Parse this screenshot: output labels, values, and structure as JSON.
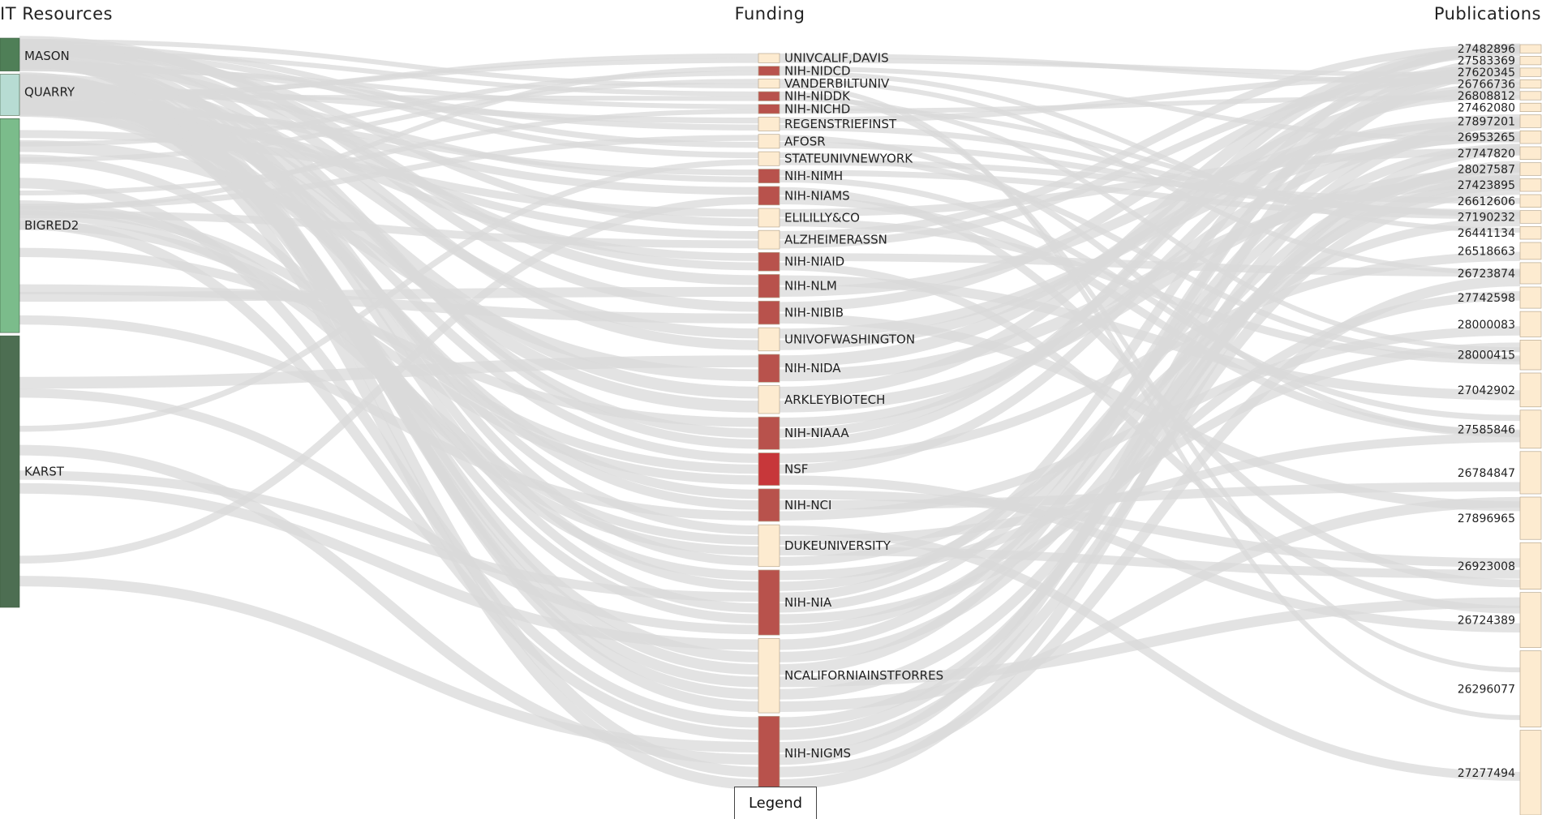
{
  "titles": {
    "resources": "IT Resources",
    "funding": "Funding",
    "publications": "Publications"
  },
  "legend": {
    "label": "Legend"
  },
  "colors": {
    "link": "#d9d9d9",
    "res_mason": "#4f7f57",
    "res_quarry": "#b7dcd3",
    "res_bigred2": "#7bbc8b",
    "res_karst": "#4d6e52",
    "fund_nih": "#b8524c",
    "fund_nsf": "#c7373a",
    "fund_other": "#fdebd0",
    "pub_fill": "#fdebd0",
    "node_stroke": "#b9a990"
  },
  "diagram": {
    "type": "sankey",
    "columns": [
      "IT Resources",
      "Funding",
      "Publications"
    ],
    "resources": [
      {
        "name": "MASON",
        "value": 4,
        "color": "res_mason"
      },
      {
        "name": "QUARRY",
        "value": 5,
        "color": "res_quarry"
      },
      {
        "name": "BIGRED2",
        "value": 26,
        "color": "res_bigred2"
      },
      {
        "name": "KARST",
        "value": 33,
        "color": "res_karst"
      }
    ],
    "funding": [
      {
        "name": "UNIVCALIF,DAVIS",
        "value": 1,
        "kind": "other"
      },
      {
        "name": "NIH-NIDCD",
        "value": 1,
        "kind": "nih"
      },
      {
        "name": "VANDERBILTUNIV",
        "value": 1,
        "kind": "other"
      },
      {
        "name": "NIH-NIDDK",
        "value": 1,
        "kind": "nih"
      },
      {
        "name": "NIH-NICHD",
        "value": 1,
        "kind": "nih"
      },
      {
        "name": "REGENSTRIEFINST",
        "value": 1.5,
        "kind": "other"
      },
      {
        "name": "AFOSR",
        "value": 1.5,
        "kind": "other"
      },
      {
        "name": "STATEUNIVNEWYORK",
        "value": 1.5,
        "kind": "other"
      },
      {
        "name": "NIH-NIMH",
        "value": 1.5,
        "kind": "nih"
      },
      {
        "name": "NIH-NIAMS",
        "value": 2,
        "kind": "nih"
      },
      {
        "name": "ELILILLY&CO",
        "value": 2,
        "kind": "other"
      },
      {
        "name": "ALZHEIMERASSN",
        "value": 2,
        "kind": "other"
      },
      {
        "name": "NIH-NIAID",
        "value": 2,
        "kind": "nih"
      },
      {
        "name": "NIH-NLM",
        "value": 2.5,
        "kind": "nih"
      },
      {
        "name": "NIH-NIBIB",
        "value": 2.5,
        "kind": "nih"
      },
      {
        "name": "UNIVOFWASHINGTON",
        "value": 2.5,
        "kind": "other"
      },
      {
        "name": "NIH-NIDA",
        "value": 3,
        "kind": "nih"
      },
      {
        "name": "ARKLEYBIOTECH",
        "value": 3,
        "kind": "other"
      },
      {
        "name": "NIH-NIAAA",
        "value": 3.5,
        "kind": "nih"
      },
      {
        "name": "NSF",
        "value": 3.5,
        "kind": "nsf"
      },
      {
        "name": "NIH-NCI",
        "value": 3.5,
        "kind": "nih"
      },
      {
        "name": "DUKEUNIVERSITY",
        "value": 4.5,
        "kind": "other"
      },
      {
        "name": "NIH-NIA",
        "value": 7,
        "kind": "nih"
      },
      {
        "name": "NCALIFORNIAINSTFORRES",
        "value": 8,
        "kind": "other"
      },
      {
        "name": "NIH-NIGMS",
        "value": 8,
        "kind": "nih"
      }
    ],
    "publications": [
      {
        "name": "27482896",
        "value": 1
      },
      {
        "name": "27583369",
        "value": 1
      },
      {
        "name": "27620345",
        "value": 1
      },
      {
        "name": "26766736",
        "value": 1
      },
      {
        "name": "26808812",
        "value": 1
      },
      {
        "name": "27462080",
        "value": 1
      },
      {
        "name": "27897201",
        "value": 1.5
      },
      {
        "name": "26953265",
        "value": 1.5
      },
      {
        "name": "27747820",
        "value": 1.5
      },
      {
        "name": "28027587",
        "value": 1.5
      },
      {
        "name": "27423895",
        "value": 1.5
      },
      {
        "name": "26612606",
        "value": 1.5
      },
      {
        "name": "27190232",
        "value": 1.5
      },
      {
        "name": "26441134",
        "value": 1.5
      },
      {
        "name": "26518663",
        "value": 2
      },
      {
        "name": "26723874",
        "value": 2.5
      },
      {
        "name": "27742598",
        "value": 2.5
      },
      {
        "name": "28000083",
        "value": 3
      },
      {
        "name": "28000415",
        "value": 3.5
      },
      {
        "name": "27042902",
        "value": 4
      },
      {
        "name": "27585846",
        "value": 4.5
      },
      {
        "name": "26784847",
        "value": 5
      },
      {
        "name": "27896965",
        "value": 5
      },
      {
        "name": "26923008",
        "value": 5.5
      },
      {
        "name": "26724389",
        "value": 6.5
      },
      {
        "name": "26296077",
        "value": 9
      },
      {
        "name": "27277494",
        "value": 10
      }
    ]
  }
}
